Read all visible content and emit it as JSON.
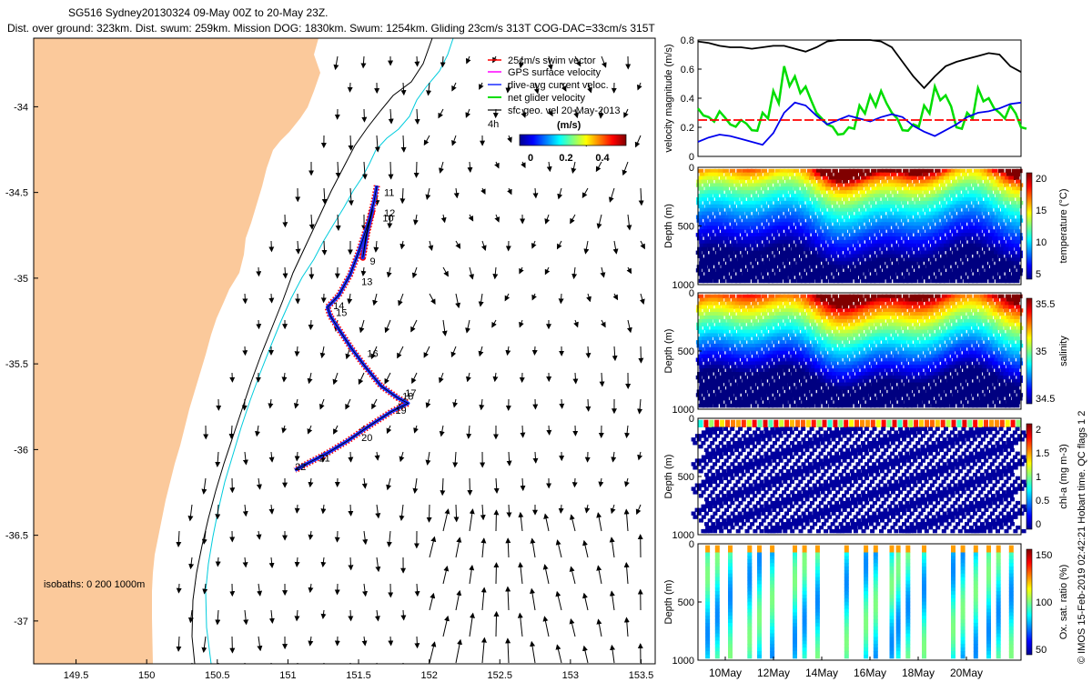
{
  "title_line1": "SG516 Sydney20130324 09-May 00Z to 20-May 23Z.",
  "title_line2": "Dist. over ground: 323km. Dist. swum: 259km. Mission DOG: 1830km. Swum: 1254km. Gliding 23cm/s 313T COG-DAC=33cm/s 315T",
  "credit": "© IMOS 15-Feb-2019 02:42:21 Hobart time. QC flags 1 2",
  "colors": {
    "land": "#FBC99B",
    "shelf": "#000000",
    "iso200": "#00CCDD",
    "track": "#1A2CFF",
    "swim": "#FF0000",
    "gps": "#FF00FF",
    "net": "#00DD00"
  },
  "chart_data": [
    {
      "type": "map",
      "xlabel": "",
      "ylabel": "",
      "xticks": [
        "149.5",
        "150",
        "150.5",
        "151",
        "151.5",
        "152",
        "152.5",
        "153",
        "153.5"
      ],
      "yticks": [
        "-34",
        "-34.5",
        "-35",
        "-35.5",
        "-36",
        "-36.5",
        "-37"
      ],
      "xlim": [
        149.2,
        153.6
      ],
      "ylim": [
        -37.25,
        -33.6
      ],
      "legend": [
        "25cm/s swim vector",
        "GPS surface velocity",
        "dive-avg current veloc.",
        "net glider velocity",
        "sfc geo. vel 20-May-2013"
      ],
      "scale_label": "4h",
      "colorbar": {
        "label": "(m/s)",
        "ticks": [
          "0",
          "0.2",
          "0.4"
        ],
        "range": [
          0,
          0.5
        ]
      },
      "isobath_label": "isobaths: 0   200  1000m",
      "track_labels": [
        {
          "text": "11",
          "lon": 151.68,
          "lat": -34.52
        },
        {
          "text": "12",
          "lon": 151.68,
          "lat": -34.64
        },
        {
          "text": "10",
          "lon": 151.67,
          "lat": -34.67
        },
        {
          "text": "9",
          "lon": 151.58,
          "lat": -34.92
        },
        {
          "text": "13",
          "lon": 151.52,
          "lat": -35.04
        },
        {
          "text": "14",
          "lon": 151.32,
          "lat": -35.18
        },
        {
          "text": "15",
          "lon": 151.34,
          "lat": -35.22
        },
        {
          "text": "16",
          "lon": 151.56,
          "lat": -35.46
        },
        {
          "text": "17",
          "lon": 151.83,
          "lat": -35.69
        },
        {
          "text": "18",
          "lon": 151.81,
          "lat": -35.71
        },
        {
          "text": "19",
          "lon": 151.76,
          "lat": -35.79
        },
        {
          "text": "20",
          "lon": 151.52,
          "lat": -35.95
        },
        {
          "text": "21",
          "lon": 151.22,
          "lat": -36.07
        },
        {
          "text": "22",
          "lon": 151.05,
          "lat": -36.12
        }
      ],
      "track": [
        [
          151.63,
          -34.46
        ],
        [
          151.61,
          -34.55
        ],
        [
          151.58,
          -34.65
        ],
        [
          151.55,
          -34.76
        ],
        [
          151.53,
          -34.88
        ],
        [
          151.56,
          -34.74
        ],
        [
          151.6,
          -34.6
        ],
        [
          151.5,
          -34.85
        ],
        [
          151.44,
          -34.98
        ],
        [
          151.36,
          -35.1
        ],
        [
          151.28,
          -35.17
        ],
        [
          151.3,
          -35.22
        ],
        [
          151.37,
          -35.31
        ],
        [
          151.45,
          -35.41
        ],
        [
          151.55,
          -35.52
        ],
        [
          151.66,
          -35.63
        ],
        [
          151.78,
          -35.7
        ],
        [
          151.85,
          -35.73
        ],
        [
          151.73,
          -35.78
        ],
        [
          151.58,
          -35.86
        ],
        [
          151.42,
          -35.95
        ],
        [
          151.28,
          -36.02
        ],
        [
          151.14,
          -36.08
        ],
        [
          151.05,
          -36.12
        ]
      ]
    },
    {
      "type": "line",
      "ylabel": "velocity magnitude (m/s)",
      "ylim": [
        0,
        0.8
      ],
      "yticks": [
        "0",
        "0.2",
        "0.4",
        "0.6",
        "0.8"
      ],
      "x": [
        0,
        0.4,
        0.8,
        1.2,
        1.6,
        2,
        2.4,
        2.8,
        3.2,
        3.6,
        4,
        4.4,
        4.8,
        5.2,
        5.6,
        6,
        6.4,
        6.8,
        7.2,
        7.6,
        8,
        8.4,
        8.8,
        9.2,
        9.6,
        10,
        10.4,
        10.8,
        11.2,
        11.6,
        12
      ],
      "series": [
        {
          "name": "GPS surface velocity",
          "color": "#000000",
          "values": [
            0.79,
            0.78,
            0.76,
            0.75,
            0.75,
            0.74,
            0.75,
            0.76,
            0.76,
            0.74,
            0.72,
            0.75,
            0.79,
            0.8,
            0.8,
            0.8,
            0.8,
            0.79,
            0.75,
            0.65,
            0.55,
            0.47,
            0.55,
            0.62,
            0.65,
            0.67,
            0.69,
            0.71,
            0.7,
            0.62,
            0.58
          ]
        },
        {
          "name": "net glider velocity",
          "color": "#00DD00",
          "values": [
            0.33,
            0.27,
            0.31,
            0.22,
            0.25,
            0.18,
            0.3,
            0.45,
            0.62,
            0.55,
            0.48,
            0.3,
            0.22,
            0.15,
            0.2,
            0.35,
            0.42,
            0.45,
            0.3,
            0.18,
            0.22,
            0.35,
            0.48,
            0.42,
            0.2,
            0.3,
            0.47,
            0.4,
            0.3,
            0.35,
            0.2
          ]
        },
        {
          "name": "dive-avg current veloc.",
          "color": "#0000EE",
          "values": [
            0.1,
            0.13,
            0.15,
            0.14,
            0.12,
            0.1,
            0.08,
            0.16,
            0.3,
            0.37,
            0.35,
            0.28,
            0.22,
            0.25,
            0.28,
            0.26,
            0.24,
            0.27,
            0.29,
            0.27,
            0.21,
            0.17,
            0.14,
            0.18,
            0.22,
            0.27,
            0.3,
            0.31,
            0.33,
            0.36,
            0.37
          ]
        },
        {
          "name": "25cm/s swim vector",
          "color": "#FF0000",
          "values": [
            0.25,
            0.25,
            0.25,
            0.25,
            0.25,
            0.25,
            0.25,
            0.25,
            0.25,
            0.25,
            0.25,
            0.25,
            0.25,
            0.25,
            0.25,
            0.25,
            0.25,
            0.25,
            0.25,
            0.25,
            0.25,
            0.25,
            0.25,
            0.25,
            0.25,
            0.25,
            0.25,
            0.25,
            0.25,
            0.25,
            0.25
          ]
        }
      ]
    },
    {
      "type": "heatmap",
      "variable": "temperature",
      "ylabel": "Depth (m)",
      "colorbar_label": "temperature (°C)",
      "colorbar_ticks": [
        "20",
        "15",
        "10",
        "5"
      ],
      "range": [
        4,
        23
      ],
      "yticks": [
        "0",
        "500",
        "1000"
      ]
    },
    {
      "type": "heatmap",
      "variable": "salinity",
      "ylabel": "Depth (m)",
      "colorbar_label": "salinity",
      "colorbar_ticks": [
        "35.5",
        "35",
        "34.5"
      ],
      "range": [
        34.3,
        35.9
      ],
      "yticks": [
        "0",
        "500",
        "1000"
      ]
    },
    {
      "type": "heatmap",
      "variable": "chlorophyll",
      "ylabel": "Depth (m)",
      "colorbar_label": "chl-a (mg m-3)",
      "colorbar_ticks": [
        "2",
        "1.5",
        "1",
        "0.5",
        "0"
      ],
      "range": [
        0,
        2
      ],
      "yticks": [
        "0",
        "500",
        "1000"
      ]
    },
    {
      "type": "heatmap",
      "variable": "oxygen",
      "ylabel": "Depth (m)",
      "colorbar_label": "Ox. sat. ratio (%)",
      "colorbar_ticks": [
        "150",
        "100",
        "50"
      ],
      "range": [
        30,
        180
      ],
      "yticks": [
        "0",
        "500",
        "1000"
      ],
      "xticks": [
        "10May",
        "12May",
        "14May",
        "16May",
        "18May",
        "20May"
      ]
    }
  ]
}
